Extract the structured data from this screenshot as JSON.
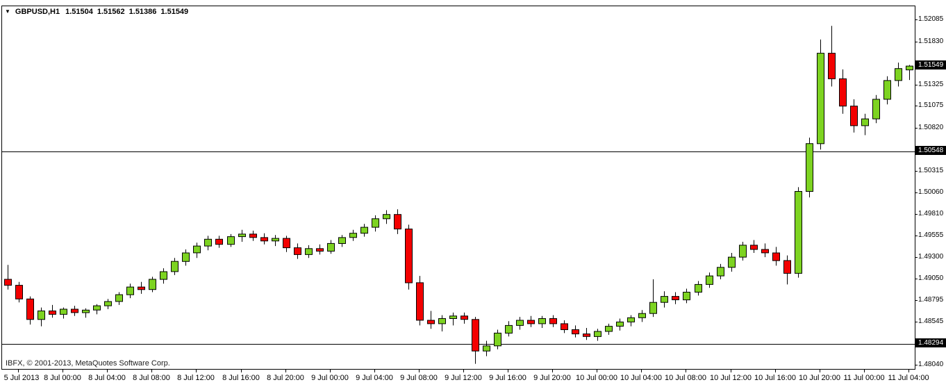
{
  "header": {
    "symbol_timeframe": "GBPUSD,H1",
    "open": "1.51504",
    "high": "1.51562",
    "low": "1.51386",
    "close": "1.51549"
  },
  "footer": {
    "copyright": "IBFX, © 2001-2013, MetaQuotes Software Corp."
  },
  "chart_data": {
    "type": "candlestick",
    "symbol": "GBPUSD",
    "timeframe": "H1",
    "title": "GBPUSD,H1 1.51504 1.51562 1.51386 1.51549",
    "colors": {
      "up": "#7dd321",
      "down": "#f30000",
      "outline": "#000000",
      "hline": "#000000",
      "background": "#ffffff",
      "marker_bg": "#000000",
      "marker_text": "#ffffff",
      "border": "#000000"
    },
    "grid": false,
    "legend": false,
    "y_axis": {
      "min": 1.48,
      "max": 1.5225,
      "labels": [
        "1.52085",
        "1.51830",
        "1.51325",
        "1.51075",
        "1.50820",
        "1.50315",
        "1.50060",
        "1.49810",
        "1.49555",
        "1.49300",
        "1.49050",
        "1.48795",
        "1.48545",
        "1.48040"
      ]
    },
    "x_axis": {
      "labels": [
        {
          "index": 1,
          "text": "5 Jul 2013"
        },
        {
          "index": 5,
          "text": "8 Jul 00:00"
        },
        {
          "index": 9,
          "text": "8 Jul 04:00"
        },
        {
          "index": 13,
          "text": "8 Jul 08:00"
        },
        {
          "index": 17,
          "text": "8 Jul 12:00"
        },
        {
          "index": 21,
          "text": "8 Jul 16:00"
        },
        {
          "index": 25,
          "text": "8 Jul 20:00"
        },
        {
          "index": 29,
          "text": "9 Jul 00:00"
        },
        {
          "index": 33,
          "text": "9 Jul 04:00"
        },
        {
          "index": 37,
          "text": "9 Jul 08:00"
        },
        {
          "index": 41,
          "text": "9 Jul 12:00"
        },
        {
          "index": 45,
          "text": "9 Jul 16:00"
        },
        {
          "index": 49,
          "text": "9 Jul 20:00"
        },
        {
          "index": 53,
          "text": "10 Jul 00:00"
        },
        {
          "index": 57,
          "text": "10 Jul 04:00"
        },
        {
          "index": 61,
          "text": "10 Jul 08:00"
        },
        {
          "index": 65,
          "text": "10 Jul 12:00"
        },
        {
          "index": 69,
          "text": "10 Jul 16:00"
        },
        {
          "index": 73,
          "text": "10 Jul 20:00"
        },
        {
          "index": 77,
          "text": "11 Jul 00:00"
        },
        {
          "index": 81,
          "text": "11 Jul 04:00"
        }
      ]
    },
    "hlines": [
      1.50548,
      1.48294
    ],
    "price_markers": [
      {
        "price": 1.51549,
        "label": "1.51549",
        "kind": "current-price"
      },
      {
        "price": 1.50548,
        "label": "1.50548",
        "kind": "hline-level"
      },
      {
        "price": 1.48294,
        "label": "1.48294",
        "kind": "hline-level"
      }
    ],
    "candles": [
      [
        1.4905,
        1.4922,
        1.4893,
        1.4898
      ],
      [
        1.4898,
        1.4902,
        1.4878,
        1.4882
      ],
      [
        1.4882,
        1.4885,
        1.4852,
        1.4858
      ],
      [
        1.4858,
        1.4872,
        1.485,
        1.4868
      ],
      [
        1.4868,
        1.4875,
        1.486,
        1.4864
      ],
      [
        1.4864,
        1.4872,
        1.4859,
        1.487
      ],
      [
        1.487,
        1.4874,
        1.4862,
        1.4866
      ],
      [
        1.4866,
        1.4871,
        1.486,
        1.4869
      ],
      [
        1.4869,
        1.4876,
        1.4864,
        1.4874
      ],
      [
        1.4874,
        1.4882,
        1.487,
        1.4879
      ],
      [
        1.4879,
        1.489,
        1.4875,
        1.4887
      ],
      [
        1.4887,
        1.49,
        1.4883,
        1.4896
      ],
      [
        1.4896,
        1.4902,
        1.4888,
        1.4893
      ],
      [
        1.4893,
        1.4908,
        1.489,
        1.4905
      ],
      [
        1.4905,
        1.4918,
        1.49,
        1.4914
      ],
      [
        1.4914,
        1.493,
        1.491,
        1.4926
      ],
      [
        1.4926,
        1.494,
        1.4921,
        1.4936
      ],
      [
        1.4936,
        1.4948,
        1.493,
        1.4944
      ],
      [
        1.4944,
        1.4956,
        1.4939,
        1.4952
      ],
      [
        1.4952,
        1.4956,
        1.4942,
        1.4946
      ],
      [
        1.4946,
        1.4958,
        1.4943,
        1.4955
      ],
      [
        1.4955,
        1.4963,
        1.4949,
        1.4958
      ],
      [
        1.4958,
        1.4962,
        1.495,
        1.4954
      ],
      [
        1.4954,
        1.4959,
        1.4946,
        1.495
      ],
      [
        1.495,
        1.4957,
        1.4944,
        1.4953
      ],
      [
        1.4953,
        1.4956,
        1.4937,
        1.4942
      ],
      [
        1.4942,
        1.4947,
        1.4929,
        1.4934
      ],
      [
        1.4934,
        1.4945,
        1.493,
        1.4941
      ],
      [
        1.4941,
        1.4946,
        1.4934,
        1.4938
      ],
      [
        1.4938,
        1.4951,
        1.4935,
        1.4947
      ],
      [
        1.4947,
        1.4957,
        1.4943,
        1.4954
      ],
      [
        1.4954,
        1.4963,
        1.495,
        1.4959
      ],
      [
        1.4959,
        1.497,
        1.4955,
        1.4966
      ],
      [
        1.4966,
        1.498,
        1.4961,
        1.4976
      ],
      [
        1.4976,
        1.4986,
        1.497,
        1.4981
      ],
      [
        1.4981,
        1.4987,
        1.4958,
        1.4964
      ],
      [
        1.4964,
        1.4969,
        1.4893,
        1.4901
      ],
      [
        1.4901,
        1.4909,
        1.4851,
        1.4857
      ],
      [
        1.4857,
        1.4868,
        1.4847,
        1.4853
      ],
      [
        1.4853,
        1.4863,
        1.4844,
        1.4859
      ],
      [
        1.4859,
        1.4866,
        1.4851,
        1.4862
      ],
      [
        1.4862,
        1.4866,
        1.4853,
        1.4858
      ],
      [
        1.4858,
        1.4861,
        1.4806,
        1.4821
      ],
      [
        1.4821,
        1.4833,
        1.4815,
        1.4827
      ],
      [
        1.4827,
        1.4846,
        1.4823,
        1.4842
      ],
      [
        1.4842,
        1.4856,
        1.4838,
        1.4851
      ],
      [
        1.4851,
        1.4861,
        1.4846,
        1.4857
      ],
      [
        1.4857,
        1.4862,
        1.4849,
        1.4853
      ],
      [
        1.4853,
        1.4862,
        1.4848,
        1.4859
      ],
      [
        1.4859,
        1.4863,
        1.4849,
        1.4853
      ],
      [
        1.4853,
        1.4857,
        1.4842,
        1.4846
      ],
      [
        1.4846,
        1.4851,
        1.4837,
        1.4841
      ],
      [
        1.4841,
        1.4848,
        1.4834,
        1.4838
      ],
      [
        1.4838,
        1.4847,
        1.4833,
        1.4844
      ],
      [
        1.4844,
        1.4853,
        1.484,
        1.485
      ],
      [
        1.485,
        1.4859,
        1.4845,
        1.4855
      ],
      [
        1.4855,
        1.4863,
        1.485,
        1.486
      ],
      [
        1.486,
        1.4869,
        1.4855,
        1.4865
      ],
      [
        1.4865,
        1.4905,
        1.4861,
        1.4878
      ],
      [
        1.4878,
        1.4891,
        1.4872,
        1.4885
      ],
      [
        1.4885,
        1.489,
        1.4876,
        1.4881
      ],
      [
        1.4881,
        1.4894,
        1.4877,
        1.489
      ],
      [
        1.489,
        1.4903,
        1.4886,
        1.4899
      ],
      [
        1.4899,
        1.4913,
        1.4895,
        1.4909
      ],
      [
        1.4909,
        1.4923,
        1.4905,
        1.4919
      ],
      [
        1.4919,
        1.4936,
        1.4914,
        1.4931
      ],
      [
        1.4931,
        1.4949,
        1.4927,
        1.4945
      ],
      [
        1.4945,
        1.4951,
        1.4936,
        1.494
      ],
      [
        1.494,
        1.4947,
        1.4931,
        1.4936
      ],
      [
        1.4936,
        1.4943,
        1.4921,
        1.4927
      ],
      [
        1.4927,
        1.4933,
        1.4899,
        1.4912
      ],
      [
        1.4912,
        1.5013,
        1.4907,
        1.5008
      ],
      [
        1.5008,
        1.5071,
        1.5001,
        1.5064
      ],
      [
        1.5064,
        1.5186,
        1.5057,
        1.517
      ],
      [
        1.517,
        1.5202,
        1.5131,
        1.514
      ],
      [
        1.514,
        1.5151,
        1.5099,
        1.5108
      ],
      [
        1.5108,
        1.5116,
        1.5077,
        1.5085
      ],
      [
        1.5085,
        1.5099,
        1.5074,
        1.5093
      ],
      [
        1.5093,
        1.5121,
        1.5088,
        1.5116
      ],
      [
        1.5116,
        1.5143,
        1.511,
        1.5138
      ],
      [
        1.5138,
        1.5159,
        1.5131,
        1.5152
      ],
      [
        1.51504,
        1.51562,
        1.51386,
        1.51549
      ]
    ]
  }
}
